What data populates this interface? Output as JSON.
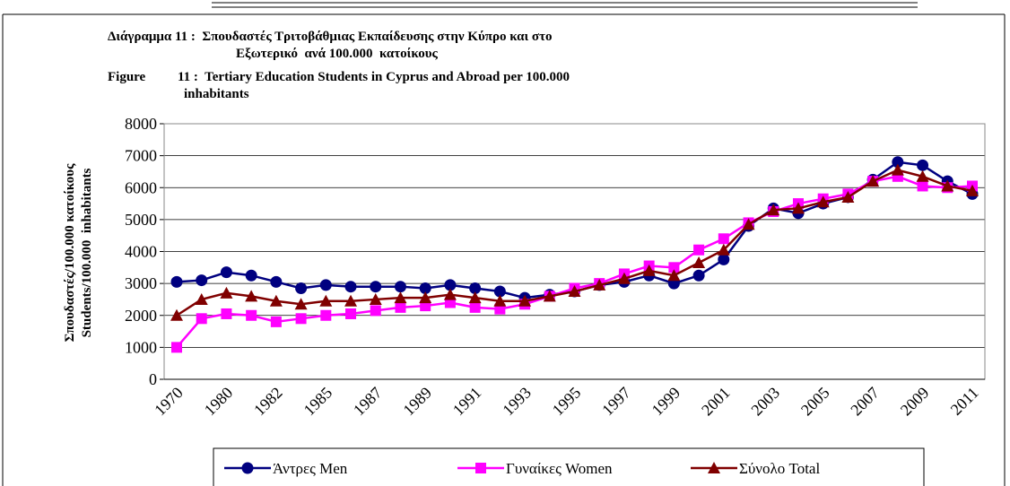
{
  "chart_data": {
    "type": "line",
    "title": [
      "Διάγραμμα 11 :  Σπουδαστές Τριτοβάθμιας Εκπαίδευσης στην Κύπρο και στο",
      "Εξωτερικό  ανά 100.000  κατοίκους"
    ],
    "subtitle": [
      "Figure",
      "11 :  Tertiary Education Students in Cyprus and Abroad per 100.000",
      "inhabitants"
    ],
    "y_label": [
      "Σπουδαστές/100.000 κατοίκους",
      "Students/100.000  inhabitants"
    ],
    "categories": [
      "1970",
      null,
      "1980",
      null,
      "1982",
      null,
      "1985",
      null,
      "1987",
      null,
      "1989",
      null,
      "1991",
      null,
      "1993",
      null,
      "1995",
      null,
      "1997",
      null,
      "1999",
      null,
      "2001",
      null,
      "2003",
      null,
      "2005",
      null,
      "2007",
      null,
      "2009",
      null,
      "2011"
    ],
    "series": [
      {
        "name": "Άντρες Men",
        "color": "#000080",
        "marker": "circle",
        "values": [
          3050,
          3100,
          3350,
          3250,
          3050,
          2850,
          2950,
          2900,
          2900,
          2900,
          2850,
          2950,
          2850,
          2750,
          2550,
          2650,
          2750,
          2950,
          3050,
          3250,
          3000,
          3250,
          3750,
          4800,
          5350,
          5200,
          5500,
          5700,
          6250,
          6800,
          6700,
          6200,
          5800
        ]
      },
      {
        "name": "Γυναίκες Women",
        "color": "#ff00ff",
        "marker": "square",
        "values": [
          1000,
          1900,
          2050,
          2000,
          1800,
          1900,
          2000,
          2050,
          2150,
          2250,
          2300,
          2400,
          2250,
          2200,
          2350,
          2600,
          2850,
          3000,
          3300,
          3550,
          3500,
          4050,
          4400,
          4900,
          5250,
          5500,
          5650,
          5800,
          6200,
          6350,
          6050,
          6000,
          6050
        ]
      },
      {
        "name": "Σύνολο Total",
        "color": "#800000",
        "marker": "triangle",
        "values": [
          2000,
          2500,
          2700,
          2600,
          2450,
          2350,
          2450,
          2450,
          2500,
          2550,
          2550,
          2650,
          2550,
          2450,
          2450,
          2600,
          2750,
          2950,
          3150,
          3400,
          3250,
          3650,
          4050,
          4850,
          5300,
          5350,
          5550,
          5700,
          6200,
          6550,
          6350,
          6050,
          5900
        ]
      }
    ],
    "ylim": [
      0,
      8000
    ],
    "yticks": [
      0,
      1000,
      2000,
      3000,
      4000,
      5000,
      6000,
      7000,
      8000
    ],
    "grid": true,
    "legend": "bottom"
  }
}
